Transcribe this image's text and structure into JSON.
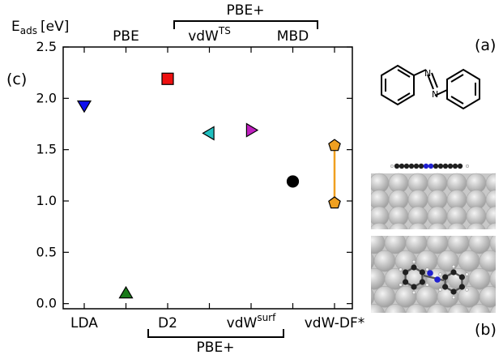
{
  "chart_data": {
    "type": "scatter",
    "ylabel": "E",
    "ylabel_sub": "ads",
    "ylabel_unit": "[eV]",
    "ylim": [
      -0.05,
      2.5
    ],
    "yticks": [
      "0.0",
      "0.5",
      "1.0",
      "1.5",
      "2.0",
      "2.5"
    ],
    "ytick_values": [
      0.0,
      0.5,
      1.0,
      1.5,
      2.0,
      2.5
    ],
    "bottom_labels": [
      {
        "text": "LDA",
        "x": 0
      },
      {
        "text": "D2",
        "x": 2
      },
      {
        "text": "vdW",
        "sup": "surf",
        "x": 4
      },
      {
        "text": "vdW-DF*",
        "x": 6
      }
    ],
    "top_labels": [
      {
        "text": "PBE",
        "x": 1
      },
      {
        "text": "vdW",
        "sup": "TS",
        "x": 3
      },
      {
        "text": "MBD",
        "x": 5
      }
    ],
    "bracket_top": "PBE+",
    "bracket_bottom": "PBE+",
    "points": [
      {
        "name": "LDA",
        "x": 0,
        "y": 1.93,
        "marker": "triangle-down",
        "color": "#1010ee"
      },
      {
        "name": "PBE",
        "x": 1,
        "y": 0.1,
        "marker": "triangle-up",
        "color": "#1a7a1a"
      },
      {
        "name": "D2",
        "x": 2,
        "y": 2.19,
        "marker": "square",
        "color": "#ee1010"
      },
      {
        "name": "vdW-TS",
        "x": 3,
        "y": 1.66,
        "marker": "triangle-left",
        "color": "#20c0c0"
      },
      {
        "name": "vdW-surf",
        "x": 4,
        "y": 1.69,
        "marker": "triangle-right",
        "color": "#c020c0"
      },
      {
        "name": "MBD",
        "x": 5,
        "y": 1.19,
        "marker": "circle",
        "color": "#000000"
      },
      {
        "name": "vdW-DF* upper",
        "x": 6,
        "y": 1.54,
        "marker": "pentagon",
        "color": "#f0a020"
      },
      {
        "name": "vdW-DF* lower",
        "x": 6,
        "y": 0.98,
        "marker": "pentagon",
        "color": "#f0a020"
      }
    ],
    "range_line": {
      "x": 6,
      "y1": 0.98,
      "y2": 1.54,
      "color": "#f0a020"
    }
  },
  "panel_labels": {
    "c": "(c)",
    "a": "(a)",
    "b": "(b)"
  },
  "colors": {
    "nitrogen": "#2020d0",
    "carbon": "#202020",
    "hydrogen": "#f0f0f0",
    "substrate": "#c8c8c8"
  }
}
